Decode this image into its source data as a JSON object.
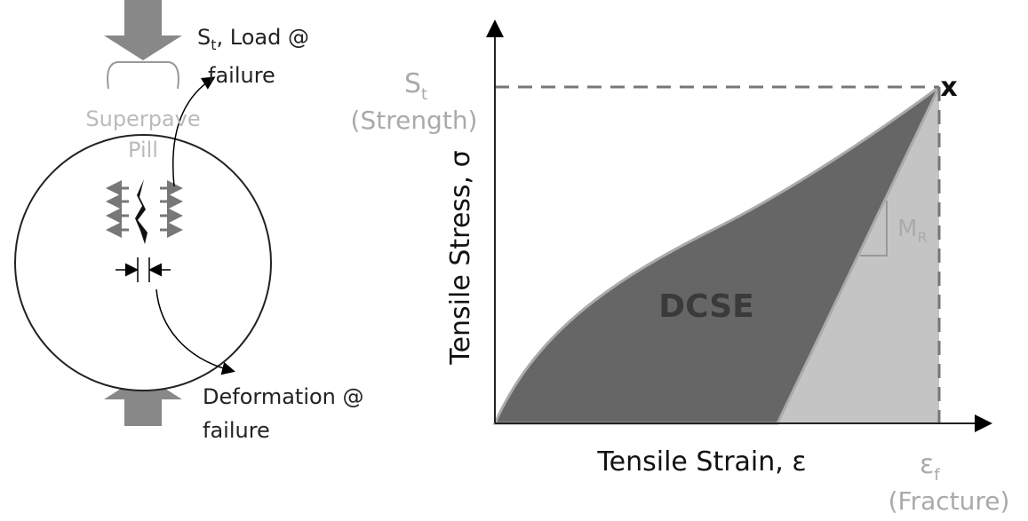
{
  "specimen": {
    "name_line1": "Superpave",
    "name_line2": "Pill",
    "load_label": {
      "symbol": "S",
      "subscript": "t",
      "text": ", Load @",
      "line2": "failure"
    },
    "deformation_label": {
      "line1": "Deformation @",
      "line2": "failure"
    }
  },
  "graph": {
    "y_axis_label": "Tensile Stress, σ",
    "x_axis_label": "Tensile Strain, ε",
    "strength": {
      "symbol": "S",
      "subscript": "t",
      "text": "(Strength)"
    },
    "fracture": {
      "symbol": "ε",
      "subscript": "f",
      "text": "(Fracture)"
    },
    "failure_marker": "x",
    "modulus": {
      "symbol": "M",
      "subscript": "R"
    },
    "area_label": "DCSE"
  }
}
